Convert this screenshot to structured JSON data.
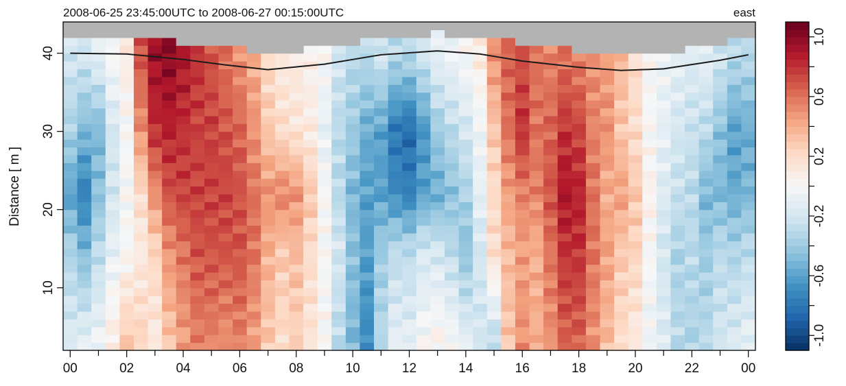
{
  "chart_data": {
    "type": "heatmap",
    "title": "2008-06-25 23:45:00UTC to 2008-06-27 00:15:00UTC",
    "corner_label": "east",
    "xlabel": "",
    "ylabel": "Distance [ m ]",
    "x_tick_labels": [
      "00",
      "02",
      "04",
      "06",
      "08",
      "10",
      "12",
      "14",
      "16",
      "18",
      "20",
      "22",
      "00"
    ],
    "x_range_hours": [
      -0.25,
      24.25
    ],
    "ylim": [
      2,
      44
    ],
    "y_ticks": [
      10,
      20,
      30,
      40
    ],
    "colorbar": {
      "range": [
        -1.1,
        1.1
      ],
      "tick_labels": [
        "-1.0",
        "-0.6",
        "-0.2",
        "0.2",
        "0.6",
        "1.0"
      ],
      "tick_values": [
        -1.0,
        -0.6,
        -0.2,
        0.2,
        0.6,
        1.0
      ],
      "colors": [
        "#053061",
        "#2166ac",
        "#4393c3",
        "#92c5de",
        "#d1e5f0",
        "#f7f7f7",
        "#fddbc7",
        "#f4a582",
        "#d6604d",
        "#b2182b",
        "#67001f"
      ]
    },
    "missing_color": "#b3b3b3",
    "surface_line": {
      "hours": [
        0,
        2,
        4,
        5.5,
        7,
        9,
        11,
        13,
        14.5,
        16,
        18,
        19.5,
        21,
        23,
        24
      ],
      "distance_m": [
        40,
        39.9,
        39.2,
        38.5,
        37.9,
        38.6,
        39.8,
        40.3,
        39.9,
        39.0,
        38.2,
        37.8,
        38.0,
        39.1,
        39.8
      ]
    },
    "velocity_profile_by_hour": [
      [
        0.0,
        [
          [
            3,
            -0.15
          ],
          [
            15,
            -0.35
          ],
          [
            22,
            -0.6
          ],
          [
            30,
            -0.35
          ],
          [
            40,
            -0.2
          ]
        ]
      ],
      [
        0.5,
        [
          [
            3,
            -0.1
          ],
          [
            15,
            -0.5
          ],
          [
            22,
            -0.75
          ],
          [
            30,
            -0.5
          ],
          [
            40,
            -0.2
          ]
        ]
      ],
      [
        1.0,
        [
          [
            3,
            -0.05
          ],
          [
            15,
            -0.3
          ],
          [
            22,
            -0.45
          ],
          [
            30,
            -0.5
          ],
          [
            40,
            -0.1
          ]
        ]
      ],
      [
        1.5,
        [
          [
            3,
            0.1
          ],
          [
            15,
            -0.1
          ],
          [
            22,
            -0.2
          ],
          [
            30,
            -0.2
          ],
          [
            40,
            0.0
          ]
        ]
      ],
      [
        2.0,
        [
          [
            3,
            0.3
          ],
          [
            15,
            0.0
          ],
          [
            22,
            0.0
          ],
          [
            30,
            0.0
          ],
          [
            40,
            0.1
          ]
        ]
      ],
      [
        2.5,
        [
          [
            3,
            0.25
          ],
          [
            15,
            0.1
          ],
          [
            22,
            0.2
          ],
          [
            30,
            0.5
          ],
          [
            40,
            0.7
          ]
        ]
      ],
      [
        3.0,
        [
          [
            3,
            0.1
          ],
          [
            15,
            0.25
          ],
          [
            22,
            0.5
          ],
          [
            30,
            0.8
          ],
          [
            40,
            0.95
          ]
        ]
      ],
      [
        3.5,
        [
          [
            3,
            0.3
          ],
          [
            15,
            0.5
          ],
          [
            22,
            0.7
          ],
          [
            30,
            0.85
          ],
          [
            40,
            1.0
          ]
        ]
      ],
      [
        4.0,
        [
          [
            3,
            0.45
          ],
          [
            15,
            0.6
          ],
          [
            22,
            0.75
          ],
          [
            30,
            0.8
          ],
          [
            40,
            0.9
          ]
        ]
      ],
      [
        4.5,
        [
          [
            3,
            0.55
          ],
          [
            15,
            0.7
          ],
          [
            22,
            0.75
          ],
          [
            30,
            0.75
          ],
          [
            40,
            0.8
          ]
        ]
      ],
      [
        5.0,
        [
          [
            3,
            0.55
          ],
          [
            15,
            0.7
          ],
          [
            22,
            0.75
          ],
          [
            30,
            0.75
          ],
          [
            40,
            0.7
          ]
        ]
      ],
      [
        5.5,
        [
          [
            3,
            0.5
          ],
          [
            15,
            0.7
          ],
          [
            22,
            0.75
          ],
          [
            30,
            0.7
          ],
          [
            40,
            0.6
          ]
        ]
      ],
      [
        6.0,
        [
          [
            3,
            0.55
          ],
          [
            15,
            0.7
          ],
          [
            22,
            0.7
          ],
          [
            30,
            0.65
          ],
          [
            40,
            0.5
          ]
        ]
      ],
      [
        6.5,
        [
          [
            3,
            0.45
          ],
          [
            15,
            0.6
          ],
          [
            22,
            0.6
          ],
          [
            30,
            0.5
          ],
          [
            40,
            0.4
          ]
        ]
      ],
      [
        7.0,
        [
          [
            3,
            0.3
          ],
          [
            15,
            0.4
          ],
          [
            22,
            0.5
          ],
          [
            30,
            0.3
          ],
          [
            40,
            0.2
          ]
        ]
      ],
      [
        7.5,
        [
          [
            3,
            0.2
          ],
          [
            15,
            0.3
          ],
          [
            22,
            0.55
          ],
          [
            30,
            0.2
          ],
          [
            40,
            0.1
          ]
        ]
      ],
      [
        8.0,
        [
          [
            3,
            0.25
          ],
          [
            15,
            0.35
          ],
          [
            22,
            0.5
          ],
          [
            30,
            0.15
          ],
          [
            40,
            0.1
          ]
        ]
      ],
      [
        8.5,
        [
          [
            3,
            0.15
          ],
          [
            15,
            0.2
          ],
          [
            22,
            0.3
          ],
          [
            30,
            0.1
          ],
          [
            40,
            0.05
          ]
        ]
      ],
      [
        9.0,
        [
          [
            3,
            0.0
          ],
          [
            15,
            0.0
          ],
          [
            22,
            0.0
          ],
          [
            30,
            -0.1
          ],
          [
            40,
            0.0
          ]
        ]
      ],
      [
        9.5,
        [
          [
            3,
            -0.3
          ],
          [
            15,
            -0.2
          ],
          [
            22,
            -0.3
          ],
          [
            30,
            -0.3
          ],
          [
            40,
            -0.2
          ]
        ]
      ],
      [
        10.0,
        [
          [
            3,
            -0.5
          ],
          [
            15,
            -0.45
          ],
          [
            22,
            -0.5
          ],
          [
            30,
            -0.4
          ],
          [
            40,
            -0.3
          ]
        ]
      ],
      [
        10.5,
        [
          [
            3,
            -0.7
          ],
          [
            15,
            -0.6
          ],
          [
            22,
            -0.6
          ],
          [
            30,
            -0.55
          ],
          [
            40,
            -0.3
          ]
        ]
      ],
      [
        11.0,
        [
          [
            3,
            -0.3
          ],
          [
            15,
            -0.4
          ],
          [
            22,
            -0.6
          ],
          [
            30,
            -0.6
          ],
          [
            40,
            -0.2
          ]
        ]
      ],
      [
        11.5,
        [
          [
            3,
            -0.1
          ],
          [
            15,
            -0.3
          ],
          [
            22,
            -0.7
          ],
          [
            30,
            -0.8
          ],
          [
            40,
            -0.3
          ]
        ]
      ],
      [
        12.0,
        [
          [
            3,
            -0.1
          ],
          [
            15,
            -0.3
          ],
          [
            22,
            -0.75
          ],
          [
            30,
            -0.85
          ],
          [
            40,
            -0.3
          ]
        ]
      ],
      [
        12.5,
        [
          [
            3,
            0.0
          ],
          [
            15,
            -0.2
          ],
          [
            22,
            -0.6
          ],
          [
            30,
            -0.65
          ],
          [
            40,
            -0.2
          ]
        ]
      ],
      [
        13.0,
        [
          [
            3,
            0.05
          ],
          [
            15,
            -0.2
          ],
          [
            22,
            -0.55
          ],
          [
            30,
            -0.4
          ],
          [
            40,
            -0.1
          ]
        ]
      ],
      [
        13.5,
        [
          [
            3,
            0.0
          ],
          [
            15,
            -0.3
          ],
          [
            22,
            -0.45
          ],
          [
            30,
            -0.3
          ],
          [
            40,
            -0.05
          ]
        ]
      ],
      [
        14.0,
        [
          [
            3,
            -0.1
          ],
          [
            15,
            -0.45
          ],
          [
            22,
            -0.35
          ],
          [
            30,
            -0.2
          ],
          [
            40,
            0.0
          ]
        ]
      ],
      [
        14.5,
        [
          [
            3,
            -0.2
          ],
          [
            15,
            -0.2
          ],
          [
            22,
            -0.1
          ],
          [
            30,
            -0.05
          ],
          [
            40,
            0.1
          ]
        ]
      ],
      [
        15.0,
        [
          [
            3,
            -0.3
          ],
          [
            15,
            0.2
          ],
          [
            22,
            0.2
          ],
          [
            30,
            0.3
          ],
          [
            40,
            0.5
          ]
        ]
      ],
      [
        15.5,
        [
          [
            3,
            0.3
          ],
          [
            15,
            0.35
          ],
          [
            22,
            0.45
          ],
          [
            30,
            0.6
          ],
          [
            40,
            0.65
          ]
        ]
      ],
      [
        16.0,
        [
          [
            3,
            0.5
          ],
          [
            15,
            0.45
          ],
          [
            22,
            0.55
          ],
          [
            30,
            0.8
          ],
          [
            40,
            0.7
          ]
        ]
      ],
      [
        16.5,
        [
          [
            3,
            0.4
          ],
          [
            15,
            0.4
          ],
          [
            22,
            0.55
          ],
          [
            30,
            0.6
          ],
          [
            40,
            0.6
          ]
        ]
      ],
      [
        17.0,
        [
          [
            3,
            0.5
          ],
          [
            15,
            0.6
          ],
          [
            22,
            0.7
          ],
          [
            30,
            0.65
          ],
          [
            40,
            0.55
          ]
        ]
      ],
      [
        17.5,
        [
          [
            3,
            0.65
          ],
          [
            15,
            0.8
          ],
          [
            22,
            0.9
          ],
          [
            30,
            0.8
          ],
          [
            40,
            0.6
          ]
        ]
      ],
      [
        18.0,
        [
          [
            3,
            0.65
          ],
          [
            15,
            0.8
          ],
          [
            22,
            0.85
          ],
          [
            30,
            0.75
          ],
          [
            40,
            0.55
          ]
        ]
      ],
      [
        18.5,
        [
          [
            3,
            0.5
          ],
          [
            15,
            0.6
          ],
          [
            22,
            0.6
          ],
          [
            30,
            0.55
          ],
          [
            40,
            0.5
          ]
        ]
      ],
      [
        19.0,
        [
          [
            3,
            0.35
          ],
          [
            15,
            0.45
          ],
          [
            22,
            0.4
          ],
          [
            30,
            0.5
          ],
          [
            40,
            0.45
          ]
        ]
      ],
      [
        19.5,
        [
          [
            3,
            0.2
          ],
          [
            15,
            0.3
          ],
          [
            22,
            0.45
          ],
          [
            30,
            0.3
          ],
          [
            40,
            0.35
          ]
        ]
      ],
      [
        20.0,
        [
          [
            3,
            0.1
          ],
          [
            15,
            0.25
          ],
          [
            22,
            0.3
          ],
          [
            30,
            0.2
          ],
          [
            40,
            0.2
          ]
        ]
      ],
      [
        20.5,
        [
          [
            3,
            -0.05
          ],
          [
            15,
            0.0
          ],
          [
            22,
            0.05
          ],
          [
            30,
            0.0
          ],
          [
            40,
            0.0
          ]
        ]
      ],
      [
        21.0,
        [
          [
            3,
            -0.15
          ],
          [
            15,
            -0.2
          ],
          [
            22,
            -0.15
          ],
          [
            30,
            -0.1
          ],
          [
            40,
            -0.05
          ]
        ]
      ],
      [
        21.5,
        [
          [
            3,
            -0.3
          ],
          [
            15,
            -0.35
          ],
          [
            22,
            -0.25
          ],
          [
            30,
            -0.2
          ],
          [
            40,
            -0.1
          ]
        ]
      ],
      [
        22.0,
        [
          [
            3,
            -0.35
          ],
          [
            15,
            -0.3
          ],
          [
            22,
            -0.3
          ],
          [
            30,
            -0.25
          ],
          [
            40,
            -0.15
          ]
        ]
      ],
      [
        22.5,
        [
          [
            3,
            -0.3
          ],
          [
            15,
            -0.4
          ],
          [
            22,
            -0.5
          ],
          [
            30,
            -0.3
          ],
          [
            40,
            -0.1
          ]
        ]
      ],
      [
        23.0,
        [
          [
            3,
            -0.2
          ],
          [
            15,
            -0.3
          ],
          [
            22,
            -0.5
          ],
          [
            30,
            -0.45
          ],
          [
            40,
            -0.2
          ]
        ]
      ],
      [
        23.5,
        [
          [
            3,
            -0.15
          ],
          [
            15,
            -0.35
          ],
          [
            22,
            -0.55
          ],
          [
            30,
            -0.6
          ],
          [
            40,
            -0.3
          ]
        ]
      ],
      [
        24.0,
        [
          [
            3,
            -0.1
          ],
          [
            15,
            -0.3
          ],
          [
            22,
            -0.5
          ],
          [
            30,
            -0.55
          ],
          [
            40,
            -0.3
          ]
        ]
      ]
    ]
  }
}
